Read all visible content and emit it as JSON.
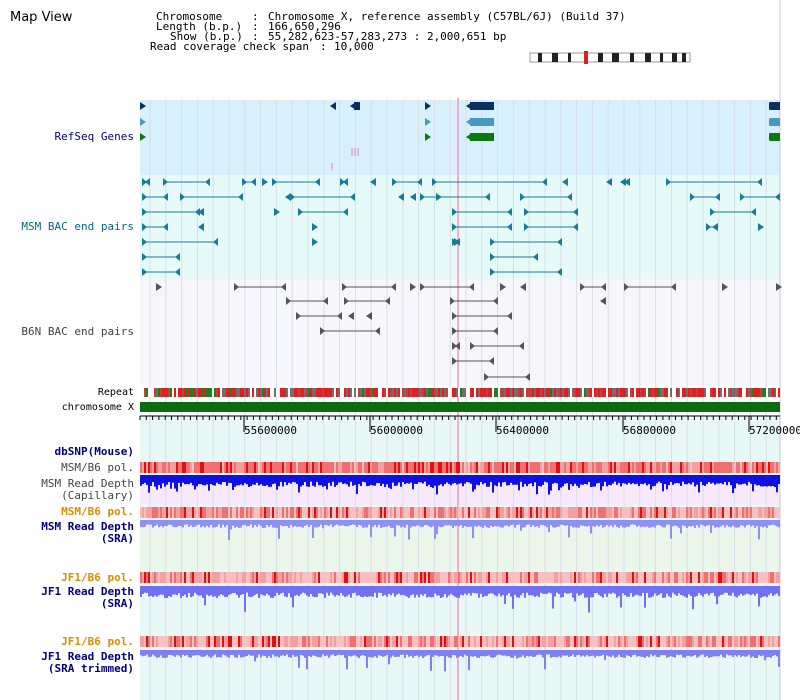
{
  "title": "Map View",
  "info": {
    "chromosome_label": "Chromosome",
    "chromosome_value": "Chromosome X, reference assembly (C57BL/6J) (Build 37)",
    "length_label": "Length (b.p.)",
    "length_value": "166,650,296",
    "show_label": "Show (b.p.)",
    "show_value": "55,282,623-57,283,273 : 2,000,651 bp",
    "coverage_label": "Read coverage check span",
    "coverage_value": "10,000"
  },
  "tracks": {
    "refseq": "RefSeq Genes",
    "msm_bac": "MSM BAC end pairs",
    "b6n_bac": "B6N BAC end pairs",
    "repeat": "Repeat",
    "chromosome": "chromosome X",
    "dbsnp": "dbSNP(Mouse)",
    "msm_pol1": "MSM/B6 pol.",
    "msm_depth_cap_1": "MSM Read Depth",
    "msm_depth_cap_2": "(Capillary)",
    "msm_pol2": "MSM/B6 pol.",
    "msm_depth_sra_1": "MSM Read Depth",
    "msm_depth_sra_2": "(SRA)",
    "jf1_pol1": "JF1/B6 pol.",
    "jf1_depth_1": "JF1 Read Depth",
    "jf1_depth_2": "(SRA)",
    "jf1_pol2": "JF1/B6 pol.",
    "jf1_trim_1": "JF1 Read Depth",
    "jf1_trim_2": "(SRA trimmed)"
  },
  "ruler": {
    "ticks": [
      "55600000",
      "56000000",
      "56400000",
      "56800000",
      "57200000"
    ]
  },
  "colors": {
    "navy": "#000080",
    "refseq_dark": "#0a3060",
    "refseq_mid": "#4a98c0",
    "refseq_green": "#0a7a10",
    "msm_pair": "#1a7a9a",
    "b6n_pair": "#555555",
    "chrom_green": "#0b6b10",
    "depth_blue": "#1010e0",
    "depth_light": "#8080f0",
    "pol_red": "#e02020",
    "orange": "#e08a00"
  }
}
